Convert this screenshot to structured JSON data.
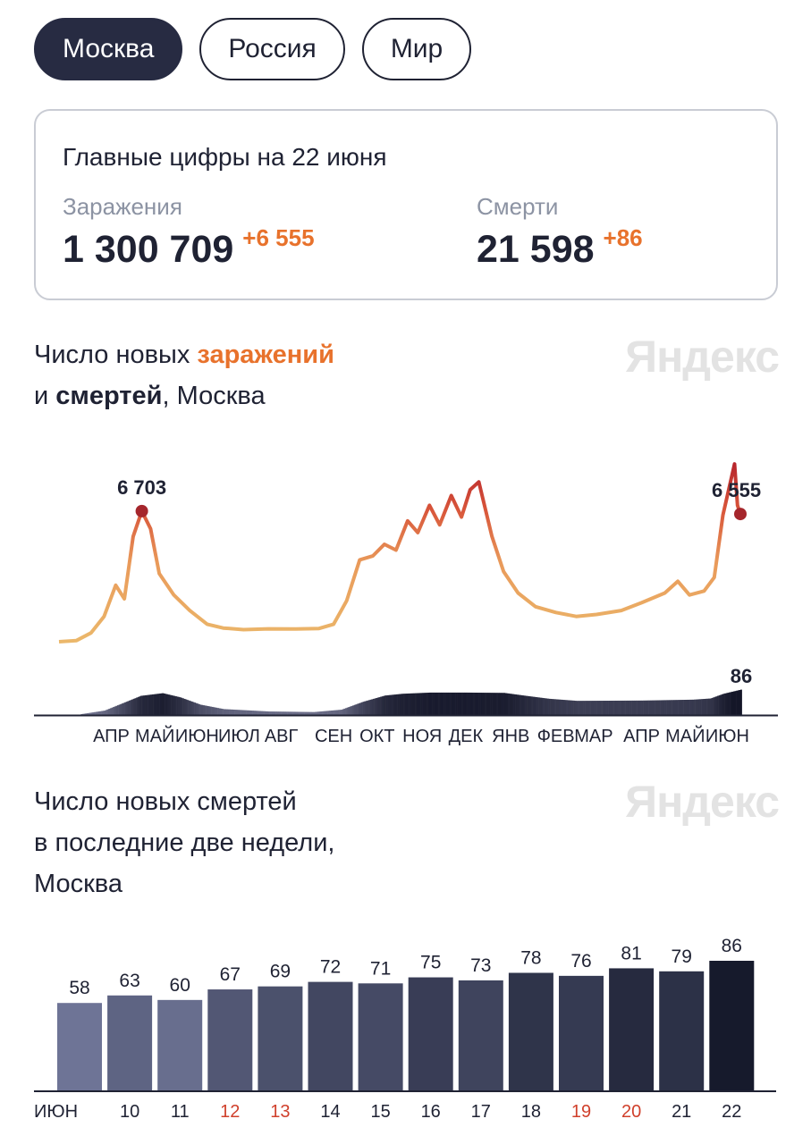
{
  "tabs": [
    {
      "label": "Москва",
      "active": true
    },
    {
      "label": "Россия"
    },
    {
      "label": "Мир"
    }
  ],
  "summary": {
    "title": "Главные цифры на 22 июня",
    "infections_label": "Заражения",
    "infections_value": "1 300 709",
    "infections_delta": "+6 555",
    "deaths_label": "Смерти",
    "deaths_value": "21 598",
    "deaths_delta": "+86"
  },
  "logo": "Яндекс",
  "chart1_title": {
    "part1": "Число новых ",
    "part2": "заражений",
    "part3": "и ",
    "part4": "смертей",
    "part5": ", Москва"
  },
  "chart2_title": {
    "line1": "Число новых смертей",
    "line2": "в последние две недели,",
    "line3": "Москва"
  },
  "colors": {
    "accent": "#e8722c",
    "low": "#ebb86b",
    "high": "#b8262c",
    "dark": "#161a2b",
    "weekend": "#d0402c"
  },
  "chart_data": [
    {
      "type": "line",
      "x_start": "2020-03-10",
      "x_end": "2021-06-22",
      "series": [
        {
          "values": [
            [
              "2020-03-10",
              0
            ],
            [
              "2020-03-22",
              60
            ],
            [
              "2020-04-01",
              450
            ],
            [
              "2020-04-10",
              1300
            ],
            [
              "2020-04-18",
              2900
            ],
            [
              "2020-04-24",
              2200
            ],
            [
              "2020-04-30",
              5400
            ],
            [
              "2020-05-06",
              6703
            ],
            [
              "2020-05-12",
              5800
            ],
            [
              "2020-05-18",
              3500
            ],
            [
              "2020-05-28",
              2400
            ],
            [
              "2020-06-08",
              1600
            ],
            [
              "2020-06-20",
              900
            ],
            [
              "2020-07-01",
              700
            ],
            [
              "2020-07-15",
              620
            ],
            [
              "2020-08-01",
              660
            ],
            [
              "2020-08-20",
              650
            ],
            [
              "2020-09-05",
              680
            ],
            [
              "2020-09-15",
              900
            ],
            [
              "2020-09-24",
              2100
            ],
            [
              "2020-10-03",
              4200
            ],
            [
              "2020-10-12",
              4400
            ],
            [
              "2020-10-20",
              5000
            ],
            [
              "2020-10-28",
              4700
            ],
            [
              "2020-11-05",
              6200
            ],
            [
              "2020-11-12",
              5600
            ],
            [
              "2020-11-20",
              7000
            ],
            [
              "2020-11-27",
              6000
            ],
            [
              "2020-12-05",
              7500
            ],
            [
              "2020-12-12",
              6400
            ],
            [
              "2020-12-18",
              7800
            ],
            [
              "2020-12-24",
              8200
            ],
            [
              "2021-01-02",
              5400
            ],
            [
              "2021-01-10",
              3600
            ],
            [
              "2021-01-20",
              2500
            ],
            [
              "2021-02-01",
              1800
            ],
            [
              "2021-02-15",
              1500
            ],
            [
              "2021-03-01",
              1300
            ],
            [
              "2021-03-15",
              1400
            ],
            [
              "2021-04-01",
              1600
            ],
            [
              "2021-04-15",
              2000
            ],
            [
              "2021-05-01",
              2500
            ],
            [
              "2021-05-10",
              3100
            ],
            [
              "2021-05-18",
              2400
            ],
            [
              "2021-05-28",
              2600
            ],
            [
              "2021-06-04",
              3300
            ],
            [
              "2021-06-10",
              6500
            ],
            [
              "2021-06-18",
              9120
            ],
            [
              "2021-06-20",
              7000
            ],
            [
              "2021-06-22",
              6555
            ]
          ]
        }
      ],
      "annotations": [
        {
          "date": "2020-05-06",
          "label": "6 703"
        },
        {
          "date": "2021-06-22",
          "label": "6 555"
        }
      ],
      "x_tick_labels": [
        "АПР",
        "МАЙ",
        "ИЮН",
        "ИЮЛ",
        "АВГ",
        "СЕН",
        "ОКТ",
        "НОЯ",
        "ДЕК",
        "ЯНВ",
        "ФЕВ",
        "МАР",
        "АПР",
        "МАЙ",
        "ИЮН"
      ],
      "x_tick_dates": [
        "2020-04-15",
        "2020-05-15",
        "2020-06-13",
        "2020-07-12",
        "2020-08-10",
        "2020-09-15",
        "2020-10-15",
        "2020-11-15",
        "2020-12-15",
        "2021-01-15",
        "2021-02-15",
        "2021-03-13",
        "2021-04-15",
        "2021-05-15",
        "2021-06-13"
      ]
    },
    {
      "type": "bar",
      "label": "deaths",
      "x_start": "2020-03-10",
      "x_end": "2021-06-22",
      "values": [
        [
          "2020-03-25",
          3
        ],
        [
          "2020-04-10",
          15
        ],
        [
          "2020-04-25",
          45
        ],
        [
          "2020-05-05",
          65
        ],
        [
          "2020-05-20",
          74
        ],
        [
          "2020-06-01",
          60
        ],
        [
          "2020-06-15",
          35
        ],
        [
          "2020-07-01",
          20
        ],
        [
          "2020-08-01",
          12
        ],
        [
          "2020-09-01",
          10
        ],
        [
          "2020-09-20",
          18
        ],
        [
          "2020-10-05",
          45
        ],
        [
          "2020-10-20",
          66
        ],
        [
          "2020-11-01",
          72
        ],
        [
          "2020-11-20",
          76
        ],
        [
          "2020-12-15",
          76
        ],
        [
          "2021-01-10",
          75
        ],
        [
          "2021-01-25",
          65
        ],
        [
          "2021-02-10",
          55
        ],
        [
          "2021-03-01",
          48
        ],
        [
          "2021-04-15",
          49
        ],
        [
          "2021-05-20",
          52
        ],
        [
          "2021-06-01",
          56
        ],
        [
          "2021-06-10",
          72
        ],
        [
          "2021-06-22",
          86
        ]
      ],
      "annotation": "86"
    },
    {
      "type": "bar",
      "categories": [
        "ИЮН",
        "10",
        "11",
        "12",
        "13",
        "14",
        "15",
        "16",
        "17",
        "18",
        "19",
        "20",
        "21",
        "22"
      ],
      "values": [
        58,
        63,
        60,
        67,
        69,
        72,
        71,
        75,
        73,
        78,
        76,
        81,
        79,
        86
      ],
      "weekend": [
        false,
        false,
        false,
        true,
        true,
        false,
        false,
        false,
        false,
        false,
        true,
        true,
        false,
        false
      ],
      "ylim": [
        0,
        86
      ]
    }
  ]
}
